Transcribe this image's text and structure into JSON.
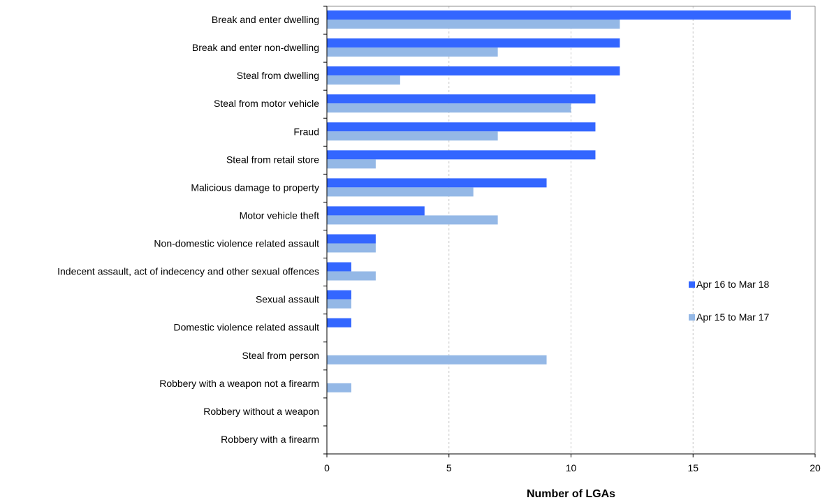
{
  "chart_data": {
    "type": "bar",
    "orientation": "horizontal",
    "title": "",
    "xlabel": "Number of LGAs",
    "ylabel": "",
    "xlim": [
      0,
      20
    ],
    "x_ticks": [
      0,
      5,
      10,
      15,
      20
    ],
    "grid": "vertical dashed",
    "legend_position": "right",
    "categories": [
      "Break and enter dwelling",
      "Break and enter non-dwelling",
      "Steal from dwelling",
      "Steal from motor vehicle",
      "Fraud",
      "Steal from retail store",
      "Malicious damage to property",
      "Motor vehicle theft",
      "Non-domestic violence related assault",
      "Indecent assault, act of indecency and other sexual offences",
      "Sexual assault",
      "Domestic violence related assault",
      "Steal from person",
      "Robbery with a weapon not a firearm",
      "Robbery without a weapon",
      "Robbery with a firearm"
    ],
    "series": [
      {
        "name": "Apr 16 to Mar 18",
        "color": "#3366ff",
        "values": [
          19,
          12,
          12,
          11,
          11,
          11,
          9,
          4,
          2,
          1,
          1,
          1,
          0,
          0,
          0,
          0
        ]
      },
      {
        "name": "Apr 15 to Mar 17",
        "color": "#94b8e6",
        "values": [
          12,
          7,
          3,
          10,
          7,
          2,
          6,
          7,
          2,
          2,
          1,
          0,
          9,
          1,
          0,
          0
        ]
      }
    ]
  }
}
